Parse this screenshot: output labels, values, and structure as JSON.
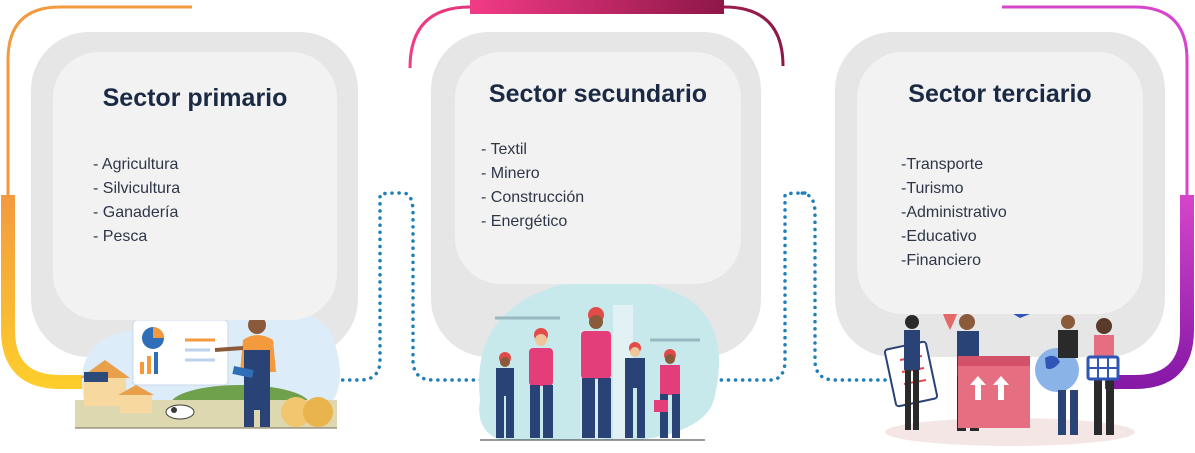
{
  "sectors": [
    {
      "title": "Sector primario",
      "items": [
        "- Agricultura",
        "- Silvicultura",
        "- Ganadería",
        "- Pesca"
      ],
      "accent_top": "#f5a13c",
      "accent_bottom": "#fcc62f"
    },
    {
      "title": "Sector secundario",
      "items": [
        "- Textil",
        "- Minero",
        "- Construcción",
        "- Energético"
      ],
      "accent_top": "#ec3f7f",
      "accent_bottom": "#8b1a4a"
    },
    {
      "title": "Sector terciario",
      "items": [
        "-Transporte",
        "-Turismo",
        "-Administrativo",
        "-Educativo",
        "-Financiero"
      ],
      "accent_top": "#d946c8",
      "accent_bottom": "#8b1fa4"
    }
  ],
  "connector_color": "#1f7fb8",
  "card_background": "#f2f2f2"
}
